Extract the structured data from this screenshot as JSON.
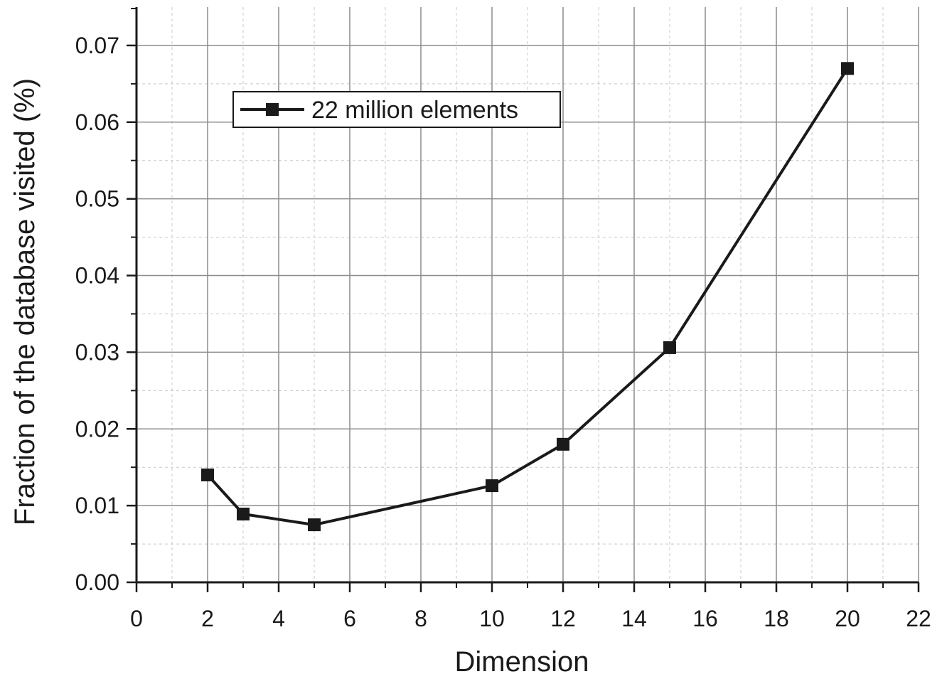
{
  "chart_data": {
    "type": "line",
    "title": "",
    "xlabel": "Dimension",
    "ylabel": "Fraction of the database visited (%)",
    "xlim": [
      0,
      22
    ],
    "ylim": [
      0,
      0.075
    ],
    "x_ticks": [
      "0",
      "2",
      "4",
      "6",
      "8",
      "10",
      "12",
      "14",
      "16",
      "18",
      "20",
      "22"
    ],
    "y_ticks": [
      "0.00",
      "0.01",
      "0.02",
      "0.03",
      "0.04",
      "0.05",
      "0.06",
      "0.07"
    ],
    "grid": true,
    "legend_position": "top-left",
    "series": [
      {
        "name": "22 million elements",
        "marker": "square",
        "color": "#1a1a1a",
        "x": [
          2,
          3,
          5,
          10,
          12,
          15,
          20
        ],
        "y": [
          0.014,
          0.0089,
          0.0075,
          0.0126,
          0.018,
          0.0306,
          0.067
        ]
      }
    ]
  }
}
